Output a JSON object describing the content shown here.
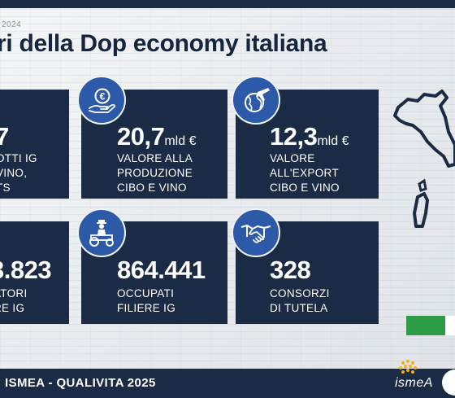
{
  "header": {
    "year_label": "2024",
    "title": "ri della Dop economy italiana"
  },
  "cards": [
    {
      "value": "7",
      "unit": "",
      "lines": [
        "OTTI IG",
        "VINO,",
        "TS"
      ],
      "icon": ""
    },
    {
      "value": "20,7",
      "unit": "mld €",
      "lines": [
        "VALORE ALLA",
        "PRODUZIONE",
        "CIBO E VINO"
      ],
      "icon": "euro-hand-icon"
    },
    {
      "value": "12,3",
      "unit": "mld €",
      "lines": [
        "VALORE",
        "ALL'EXPORT",
        "CIBO E VINO"
      ],
      "icon": "globe-plane-icon"
    },
    {
      "value": "3.823",
      "unit": "",
      "lines": [
        "ATORI",
        "RE IG"
      ],
      "icon": ""
    },
    {
      "value": "864.441",
      "unit": "",
      "lines": [
        "OCCUPATI",
        "FILIERE IG"
      ],
      "icon": "farmer-tractor-icon"
    },
    {
      "value": "328",
      "unit": "",
      "lines": [
        "CONSORZI",
        "DI TUTELA"
      ],
      "icon": "handshake-icon"
    }
  ],
  "footer": {
    "source": "ISMEA - QUALIVITA 2025",
    "logo_text": "ismeA"
  },
  "colors": {
    "navy": "#1b2b45",
    "badge_blue": "#2d5aa8",
    "flag_green": "#2e9c46"
  }
}
